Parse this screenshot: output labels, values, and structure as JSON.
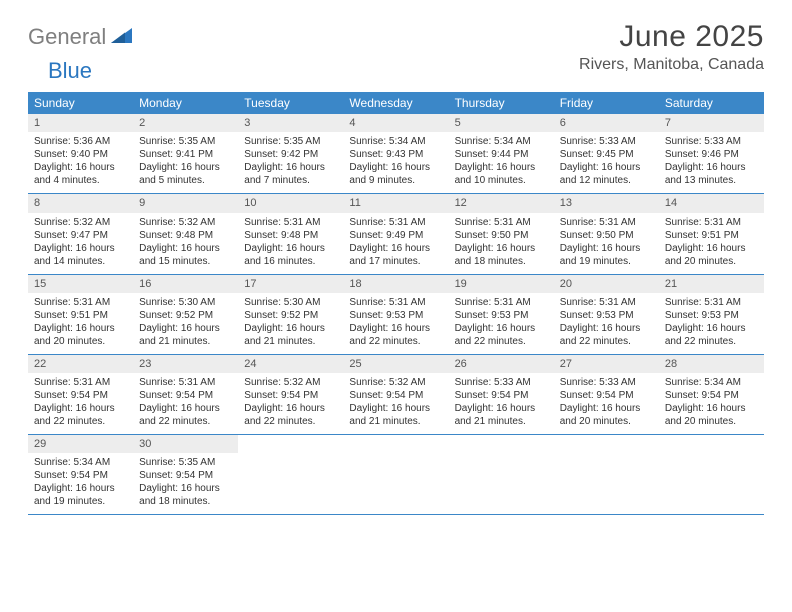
{
  "logo": {
    "part1": "General",
    "part2": "Blue"
  },
  "title": "June 2025",
  "location": "Rivers, Manitoba, Canada",
  "colors": {
    "header_bg": "#3b87c8",
    "header_fg": "#ffffff",
    "daynum_bg": "#ededed",
    "row_border": "#3b87c8",
    "logo_gray": "#7f7f7f",
    "logo_blue": "#2b77c0"
  },
  "day_names": [
    "Sunday",
    "Monday",
    "Tuesday",
    "Wednesday",
    "Thursday",
    "Friday",
    "Saturday"
  ],
  "weeks": [
    [
      {
        "n": "1",
        "sr": "5:36 AM",
        "ss": "9:40 PM",
        "dl": "16 hours and 4 minutes."
      },
      {
        "n": "2",
        "sr": "5:35 AM",
        "ss": "9:41 PM",
        "dl": "16 hours and 5 minutes."
      },
      {
        "n": "3",
        "sr": "5:35 AM",
        "ss": "9:42 PM",
        "dl": "16 hours and 7 minutes."
      },
      {
        "n": "4",
        "sr": "5:34 AM",
        "ss": "9:43 PM",
        "dl": "16 hours and 9 minutes."
      },
      {
        "n": "5",
        "sr": "5:34 AM",
        "ss": "9:44 PM",
        "dl": "16 hours and 10 minutes."
      },
      {
        "n": "6",
        "sr": "5:33 AM",
        "ss": "9:45 PM",
        "dl": "16 hours and 12 minutes."
      },
      {
        "n": "7",
        "sr": "5:33 AM",
        "ss": "9:46 PM",
        "dl": "16 hours and 13 minutes."
      }
    ],
    [
      {
        "n": "8",
        "sr": "5:32 AM",
        "ss": "9:47 PM",
        "dl": "16 hours and 14 minutes."
      },
      {
        "n": "9",
        "sr": "5:32 AM",
        "ss": "9:48 PM",
        "dl": "16 hours and 15 minutes."
      },
      {
        "n": "10",
        "sr": "5:31 AM",
        "ss": "9:48 PM",
        "dl": "16 hours and 16 minutes."
      },
      {
        "n": "11",
        "sr": "5:31 AM",
        "ss": "9:49 PM",
        "dl": "16 hours and 17 minutes."
      },
      {
        "n": "12",
        "sr": "5:31 AM",
        "ss": "9:50 PM",
        "dl": "16 hours and 18 minutes."
      },
      {
        "n": "13",
        "sr": "5:31 AM",
        "ss": "9:50 PM",
        "dl": "16 hours and 19 minutes."
      },
      {
        "n": "14",
        "sr": "5:31 AM",
        "ss": "9:51 PM",
        "dl": "16 hours and 20 minutes."
      }
    ],
    [
      {
        "n": "15",
        "sr": "5:31 AM",
        "ss": "9:51 PM",
        "dl": "16 hours and 20 minutes."
      },
      {
        "n": "16",
        "sr": "5:30 AM",
        "ss": "9:52 PM",
        "dl": "16 hours and 21 minutes."
      },
      {
        "n": "17",
        "sr": "5:30 AM",
        "ss": "9:52 PM",
        "dl": "16 hours and 21 minutes."
      },
      {
        "n": "18",
        "sr": "5:31 AM",
        "ss": "9:53 PM",
        "dl": "16 hours and 22 minutes."
      },
      {
        "n": "19",
        "sr": "5:31 AM",
        "ss": "9:53 PM",
        "dl": "16 hours and 22 minutes."
      },
      {
        "n": "20",
        "sr": "5:31 AM",
        "ss": "9:53 PM",
        "dl": "16 hours and 22 minutes."
      },
      {
        "n": "21",
        "sr": "5:31 AM",
        "ss": "9:53 PM",
        "dl": "16 hours and 22 minutes."
      }
    ],
    [
      {
        "n": "22",
        "sr": "5:31 AM",
        "ss": "9:54 PM",
        "dl": "16 hours and 22 minutes."
      },
      {
        "n": "23",
        "sr": "5:31 AM",
        "ss": "9:54 PM",
        "dl": "16 hours and 22 minutes."
      },
      {
        "n": "24",
        "sr": "5:32 AM",
        "ss": "9:54 PM",
        "dl": "16 hours and 22 minutes."
      },
      {
        "n": "25",
        "sr": "5:32 AM",
        "ss": "9:54 PM",
        "dl": "16 hours and 21 minutes."
      },
      {
        "n": "26",
        "sr": "5:33 AM",
        "ss": "9:54 PM",
        "dl": "16 hours and 21 minutes."
      },
      {
        "n": "27",
        "sr": "5:33 AM",
        "ss": "9:54 PM",
        "dl": "16 hours and 20 minutes."
      },
      {
        "n": "28",
        "sr": "5:34 AM",
        "ss": "9:54 PM",
        "dl": "16 hours and 20 minutes."
      }
    ],
    [
      {
        "n": "29",
        "sr": "5:34 AM",
        "ss": "9:54 PM",
        "dl": "16 hours and 19 minutes."
      },
      {
        "n": "30",
        "sr": "5:35 AM",
        "ss": "9:54 PM",
        "dl": "16 hours and 18 minutes."
      },
      null,
      null,
      null,
      null,
      null
    ]
  ],
  "labels": {
    "sunrise": "Sunrise: ",
    "sunset": "Sunset: ",
    "daylight": "Daylight: "
  }
}
